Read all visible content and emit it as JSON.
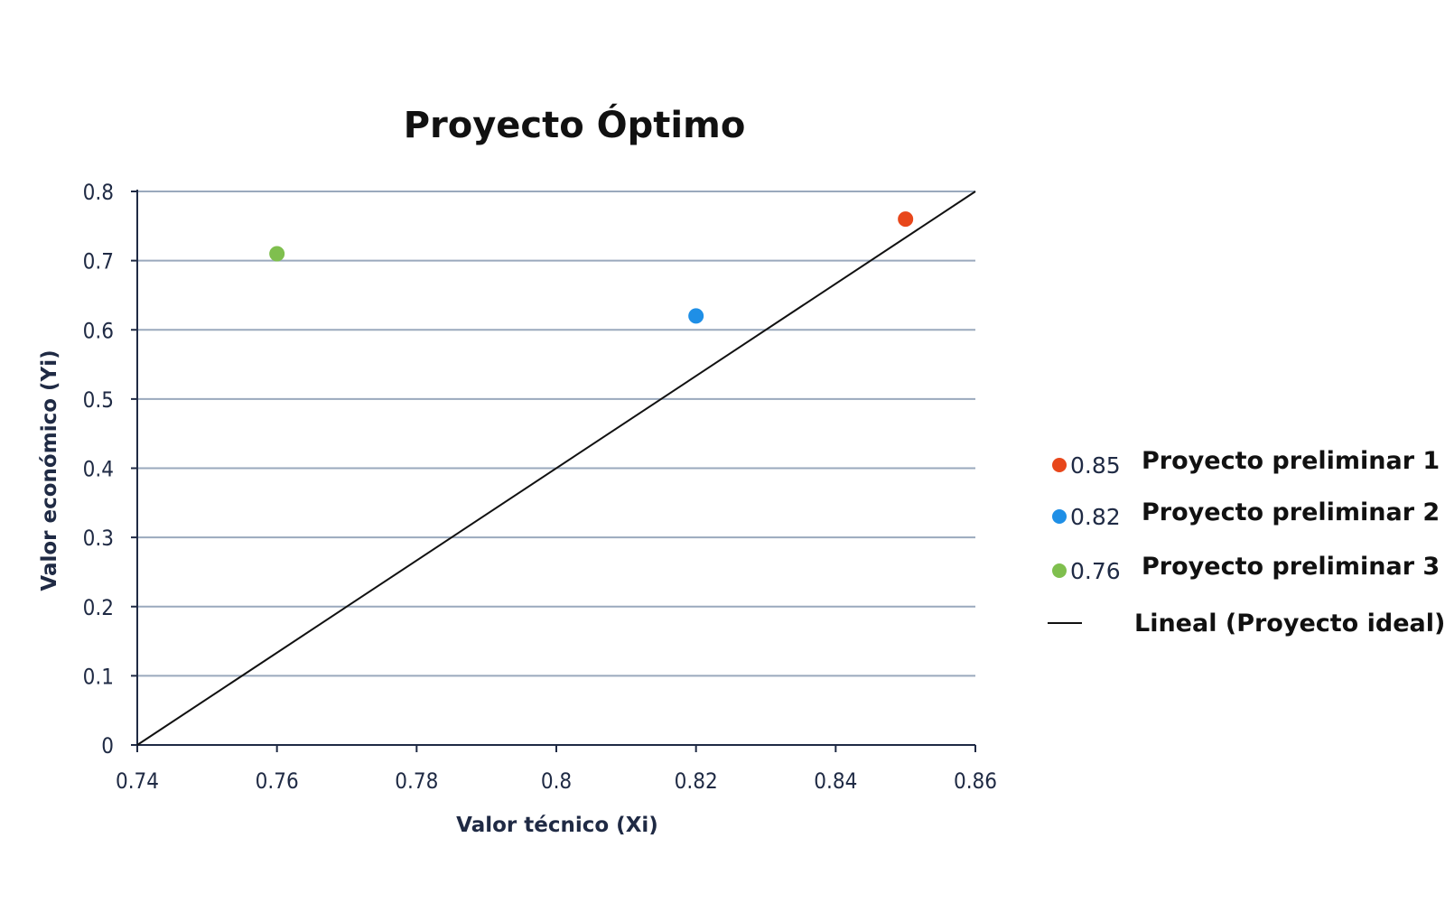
{
  "chart_data": {
    "type": "scatter",
    "title": "Proyecto Óptimo",
    "xlabel": "Valor técnico (Xi)",
    "ylabel": "Valor económico (Yi)",
    "xlim": [
      0.74,
      0.86
    ],
    "ylim": [
      0,
      0.8
    ],
    "xticks": [
      "0.74",
      "0.76",
      "0.78",
      "0.8",
      "0.82",
      "0.84",
      "0.86"
    ],
    "yticks": [
      "0",
      "0.1",
      "0.2",
      "0.3",
      "0.4",
      "0.5",
      "0.6",
      "0.7",
      "0.8"
    ],
    "grid": "horizontal",
    "legend_position": "right",
    "series": [
      {
        "name": "Proyecto preliminar 1",
        "legend_value": "0.85",
        "x": 0.85,
        "y": 0.76,
        "color": "#e8471b"
      },
      {
        "name": "Proyecto preliminar 2",
        "legend_value": "0.82",
        "x": 0.82,
        "y": 0.62,
        "color": "#1f8fe6"
      },
      {
        "name": "Proyecto preliminar 3",
        "legend_value": "0.76",
        "x": 0.76,
        "y": 0.71,
        "color": "#7fbf4e"
      }
    ],
    "line": {
      "name": "Lineal (Proyecto ideal)",
      "x": [
        0.74,
        0.86
      ],
      "y": [
        0,
        0.8
      ],
      "color": "#111111"
    }
  }
}
